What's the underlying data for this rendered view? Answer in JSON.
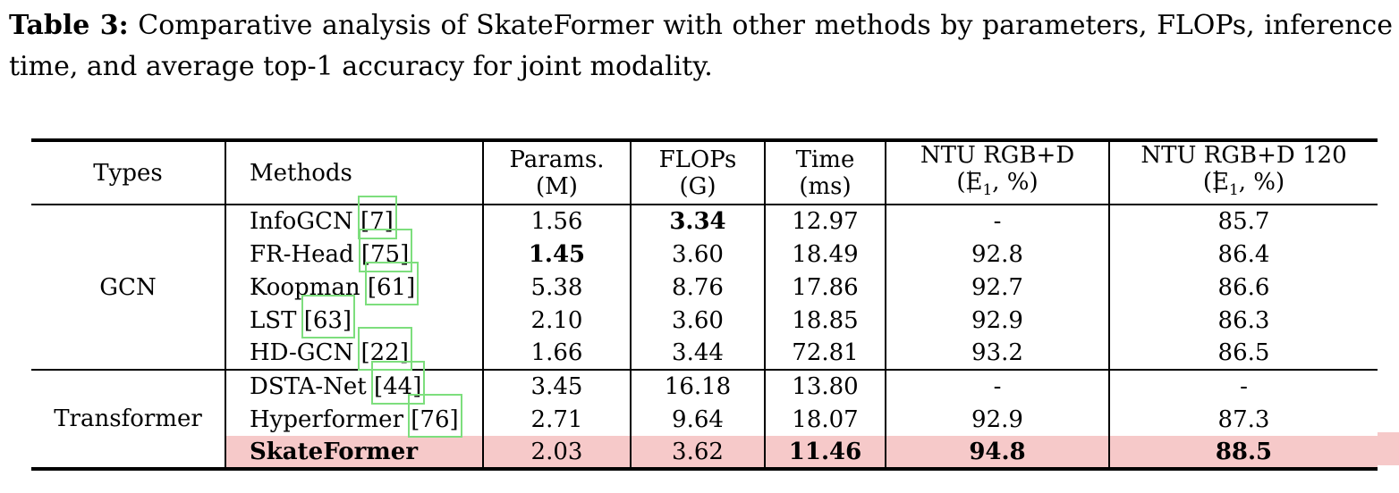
{
  "caption": {
    "label": "Table 3:",
    "text": "Comparative analysis of SkateFormer with other methods by parameters, FLOPs, inference time, and average top-1 accuracy for joint modality."
  },
  "table": {
    "headers": {
      "types": "Types",
      "methods": "Methods",
      "cols": [
        {
          "line1": "Params.",
          "line2": "(M)"
        },
        {
          "line1": "FLOPs",
          "line2": "(G)"
        },
        {
          "line1": "Time",
          "line2": "(ms)"
        },
        {
          "line1": "NTU RGB+D",
          "l2_pre": "(",
          "l2_e": "E",
          "l2_sub": "1",
          "l2_post": ", %)"
        },
        {
          "line1": "NTU RGB+D 120",
          "l2_pre": "(",
          "l2_e": "E",
          "l2_sub": "1",
          "l2_post": ", %)"
        }
      ]
    },
    "groups": [
      {
        "type": "GCN",
        "rows": [
          {
            "method": "InfoGCN",
            "cite": "[7]",
            "params": "1.56",
            "flops": "3.34",
            "time": "12.97",
            "ntu60": "-",
            "ntu120": "85.7",
            "bold": [
              "flops"
            ]
          },
          {
            "method": "FR-Head",
            "cite": "[75]",
            "params": "1.45",
            "flops": "3.60",
            "time": "18.49",
            "ntu60": "92.8",
            "ntu120": "86.4",
            "bold": [
              "params"
            ]
          },
          {
            "method": "Koopman",
            "cite": "[61]",
            "params": "5.38",
            "flops": "8.76",
            "time": "17.86",
            "ntu60": "92.7",
            "ntu120": "86.6",
            "bold": []
          },
          {
            "method": "LST",
            "cite": "[63]",
            "params": "2.10",
            "flops": "3.60",
            "time": "18.85",
            "ntu60": "92.9",
            "ntu120": "86.3",
            "bold": []
          },
          {
            "method": "HD-GCN",
            "cite": "[22]",
            "params": "1.66",
            "flops": "3.44",
            "time": "72.81",
            "ntu60": "93.2",
            "ntu120": "86.5",
            "bold": []
          }
        ]
      },
      {
        "type": "Transformer",
        "rows": [
          {
            "method": "DSTA-Net",
            "cite": "[44]",
            "params": "3.45",
            "flops": "16.18",
            "time": "13.80",
            "ntu60": "-",
            "ntu120": "-",
            "bold": []
          },
          {
            "method": "Hyperformer",
            "cite": "[76]",
            "params": "2.71",
            "flops": "9.64",
            "time": "18.07",
            "ntu60": "92.9",
            "ntu120": "87.3",
            "bold": []
          },
          {
            "method": "SkateFormer",
            "cite": "",
            "params": "2.03",
            "flops": "3.62",
            "time": "11.46",
            "ntu60": "94.8",
            "ntu120": "88.5",
            "bold": [
              "time",
              "ntu60",
              "ntu120"
            ],
            "name_bold": true,
            "highlight": true
          }
        ]
      }
    ]
  },
  "colors": {
    "highlight_row": "#f6c9c9",
    "citation_link_box": "#7dde7d"
  }
}
